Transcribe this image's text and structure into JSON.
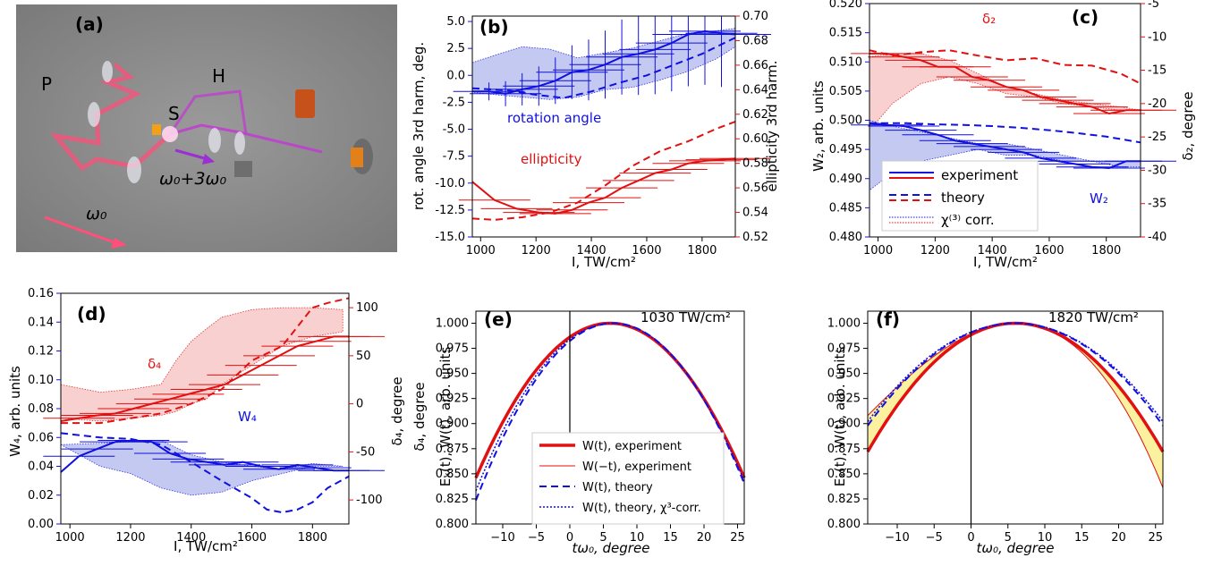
{
  "colors": {
    "blue": "#1010e0",
    "red": "#e21010",
    "blue_fill": "#b9c0ee",
    "red_fill": "#f8c8c8",
    "yellow_fill": "#fbf19e"
  },
  "panel_a": {
    "label": "(a)",
    "labels": {
      "p": "P",
      "h": "H",
      "s": "S",
      "omega0": "ω₀",
      "omega_mix": "ω₀+3ω₀"
    }
  },
  "chart_data": [
    {
      "id": "b",
      "type": "line",
      "panel_label": "(b)",
      "xlabel": "I, TW/cm²",
      "ylabel_left": "rot. angle 3rd harm, deg.",
      "ylabel_right": "ellipticity 3rd harm.",
      "xlim": [
        970,
        1920
      ],
      "ylim_left": [
        -15,
        5.5
      ],
      "ylim_right": [
        0.52,
        0.7
      ],
      "x_ticks": [
        1000,
        1200,
        1400,
        1600,
        1800
      ],
      "y_ticks_left": [
        -15.0,
        -12.5,
        -10.0,
        -7.5,
        -5.0,
        -2.5,
        0.0,
        2.5,
        5.0
      ],
      "y_ticks_right": [
        0.52,
        0.54,
        0.56,
        0.58,
        0.6,
        0.62,
        0.64,
        0.66,
        0.68,
        0.7
      ],
      "annotations": [
        {
          "text": "rotation angle",
          "color": "blue"
        },
        {
          "text": "ellipticity",
          "color": "red"
        }
      ],
      "series": [
        {
          "axis": "right",
          "color": "blue",
          "style": "band",
          "x": [
            970,
            1050,
            1150,
            1250,
            1350,
            1450,
            1550,
            1650,
            1750,
            1850,
            1920
          ],
          "y": [
            0.662,
            0.668,
            0.675,
            0.673,
            0.666,
            0.67,
            0.674,
            0.68,
            0.686,
            0.688,
            0.69
          ],
          "y2": [
            0.638,
            0.636,
            0.634,
            0.632,
            0.634,
            0.64,
            0.642,
            0.648,
            0.655,
            0.665,
            0.675
          ]
        },
        {
          "axis": "left",
          "color": "blue",
          "style": "step",
          "x": [
            970,
            1030,
            1090,
            1150,
            1210,
            1270,
            1330,
            1390,
            1450,
            1510,
            1570,
            1630,
            1690,
            1750,
            1810,
            1870,
            1920
          ],
          "y": [
            -1.5,
            -1.5,
            -1.7,
            -1.3,
            -1.0,
            -0.5,
            0.3,
            0.5,
            1.0,
            1.7,
            2.0,
            2.4,
            3.0,
            3.8,
            4.1,
            3.9,
            3.8
          ]
        },
        {
          "axis": "left",
          "color": "blue",
          "style": "dash",
          "x": [
            970,
            1100,
            1200,
            1300,
            1400,
            1500,
            1600,
            1700,
            1800,
            1920
          ],
          "y": [
            -1.2,
            -1.4,
            -1.8,
            -2.1,
            -1.5,
            -0.7,
            0.0,
            1.0,
            2.0,
            3.5
          ]
        },
        {
          "axis": "right",
          "color": "red",
          "style": "step",
          "x": [
            970,
            1050,
            1130,
            1210,
            1270,
            1330,
            1390,
            1450,
            1510,
            1570,
            1630,
            1690,
            1750,
            1810,
            1870,
            1920
          ],
          "y": [
            0.565,
            0.55,
            0.543,
            0.54,
            0.539,
            0.542,
            0.548,
            0.552,
            0.56,
            0.566,
            0.572,
            0.575,
            0.58,
            0.582,
            0.583,
            0.584
          ]
        },
        {
          "axis": "right",
          "color": "red",
          "style": "dash",
          "x": [
            970,
            1050,
            1150,
            1250,
            1350,
            1450,
            1550,
            1650,
            1750,
            1850,
            1920
          ],
          "y": [
            0.535,
            0.534,
            0.536,
            0.54,
            0.548,
            0.562,
            0.578,
            0.59,
            0.598,
            0.608,
            0.614
          ]
        }
      ]
    },
    {
      "id": "c",
      "type": "line",
      "panel_label": "(c)",
      "xlabel": "I, TW/cm²",
      "ylabel_left": "W₂, arb. units",
      "ylabel_right": "δ₂, degree",
      "xlim": [
        970,
        1920
      ],
      "ylim_left": [
        0.48,
        0.52
      ],
      "ylim_right": [
        -40,
        -5
      ],
      "x_ticks": [
        1000,
        1200,
        1400,
        1600,
        1800
      ],
      "y_ticks_left": [
        0.48,
        0.485,
        0.49,
        0.495,
        0.5,
        0.505,
        0.51,
        0.515,
        0.52
      ],
      "y_ticks_right": [
        -40,
        -35,
        -30,
        -25,
        -20,
        -15,
        -10,
        -5
      ],
      "annotations": [
        {
          "text": "δ₂",
          "color": "red"
        },
        {
          "text": "W₂",
          "color": "blue"
        }
      ],
      "legend": {
        "placement": "lower-left",
        "entries": [
          "experiment",
          "",
          "theory",
          "",
          "χ⁽³⁾ corr.",
          ""
        ]
      },
      "series": [
        {
          "axis": "right",
          "color": "red",
          "style": "band",
          "x": [
            970,
            1050,
            1150,
            1250,
            1350,
            1450,
            1550,
            1650,
            1750,
            1850,
            1920
          ],
          "y": [
            -13.0,
            -12.5,
            -12.5,
            -13.5,
            -15.5,
            -17.5,
            -18.5,
            -19.5,
            -20.0,
            -20.5,
            -21.0
          ],
          "y2": [
            -24.0,
            -20.0,
            -17.0,
            -16.0,
            -17.0,
            -18.5,
            -19.0,
            -20.0,
            -20.5,
            -21.0,
            -21.0
          ]
        },
        {
          "axis": "left",
          "color": "blue",
          "style": "band",
          "x": [
            970,
            1050,
            1150,
            1250,
            1350,
            1450,
            1550,
            1650,
            1750,
            1850,
            1920
          ],
          "y": [
            0.5,
            0.499,
            0.498,
            0.497,
            0.496,
            0.496,
            0.495,
            0.494,
            0.493,
            0.492,
            0.492
          ],
          "y2": [
            0.488,
            0.491,
            0.493,
            0.494,
            0.495,
            0.494,
            0.494,
            0.493,
            0.493,
            0.493,
            0.493
          ]
        },
        {
          "axis": "right",
          "color": "red",
          "style": "step",
          "x": [
            970,
            1030,
            1090,
            1150,
            1210,
            1270,
            1330,
            1390,
            1450,
            1510,
            1570,
            1630,
            1690,
            1750,
            1810,
            1870,
            1920
          ],
          "y": [
            -12.5,
            -12.5,
            -13.0,
            -13.5,
            -14.5,
            -14.5,
            -16.0,
            -16.5,
            -17.5,
            -18.0,
            -19.0,
            -19.5,
            -20.0,
            -20.5,
            -21.5,
            -21.0,
            -21.0
          ]
        },
        {
          "axis": "right",
          "color": "red",
          "style": "dash",
          "x": [
            970,
            1050,
            1150,
            1250,
            1350,
            1450,
            1550,
            1650,
            1750,
            1850,
            1920
          ],
          "y": [
            -12.0,
            -12.8,
            -12.3,
            -12.0,
            -12.8,
            -13.5,
            -13.2,
            -14.2,
            -14.3,
            -15.5,
            -17.0
          ]
        },
        {
          "axis": "left",
          "color": "blue",
          "style": "step",
          "x": [
            970,
            1030,
            1090,
            1150,
            1210,
            1270,
            1330,
            1390,
            1450,
            1510,
            1570,
            1630,
            1690,
            1750,
            1810,
            1870,
            1920
          ],
          "y": [
            0.4995,
            0.4992,
            0.499,
            0.4983,
            0.4975,
            0.4965,
            0.496,
            0.4955,
            0.495,
            0.4945,
            0.4935,
            0.493,
            0.4925,
            0.492,
            0.4918,
            0.493,
            0.493
          ]
        },
        {
          "axis": "left",
          "color": "blue",
          "style": "dash",
          "x": [
            970,
            1100,
            1200,
            1300,
            1400,
            1500,
            1600,
            1700,
            1800,
            1920
          ],
          "y": [
            0.4995,
            0.4995,
            0.4993,
            0.4992,
            0.499,
            0.4987,
            0.4983,
            0.4978,
            0.4972,
            0.4962
          ]
        }
      ]
    },
    {
      "id": "d",
      "type": "line",
      "panel_label": "(d)",
      "xlabel": "I, TW/cm²",
      "ylabel_left": "W₄, arb. units",
      "ylabel_right": "δ₄, degree",
      "xlim": [
        970,
        1920
      ],
      "ylim_left": [
        0.0,
        0.16
      ],
      "ylim_right": [
        -125,
        115
      ],
      "x_ticks": [
        1000,
        1200,
        1400,
        1600,
        1800
      ],
      "y_ticks_left": [
        0.0,
        0.02,
        0.04,
        0.06,
        0.08,
        0.1,
        0.12,
        0.14,
        0.16
      ],
      "y_ticks_right": [
        -100,
        -50,
        0,
        50,
        100
      ],
      "annotations": [
        {
          "text": "δ₄",
          "color": "red"
        },
        {
          "text": "W₄",
          "color": "blue"
        }
      ],
      "series": [
        {
          "axis": "right",
          "color": "red",
          "style": "band",
          "x": [
            970,
            1100,
            1200,
            1300,
            1350,
            1400,
            1450,
            1500,
            1600,
            1700,
            1800,
            1900
          ],
          "y": [
            20,
            12,
            15,
            20,
            45,
            65,
            78,
            90,
            98,
            100,
            100,
            98
          ],
          "y2": [
            -15,
            -18,
            -15,
            -12,
            -8,
            0,
            5,
            20,
            40,
            60,
            70,
            75
          ]
        },
        {
          "axis": "left",
          "color": "blue",
          "style": "band",
          "x": [
            970,
            1100,
            1200,
            1250,
            1300,
            1400,
            1500,
            1600,
            1700,
            1800,
            1900
          ],
          "y": [
            0.055,
            0.056,
            0.057,
            0.058,
            0.058,
            0.048,
            0.043,
            0.04,
            0.038,
            0.042,
            0.04
          ],
          "y2": [
            0.055,
            0.04,
            0.035,
            0.03,
            0.025,
            0.02,
            0.022,
            0.03,
            0.035,
            0.04,
            0.04
          ]
        },
        {
          "axis": "right",
          "color": "red",
          "style": "step",
          "x": [
            970,
            1030,
            1090,
            1150,
            1210,
            1270,
            1330,
            1390,
            1450,
            1510,
            1570,
            1630,
            1690,
            1750,
            1810,
            1870,
            1920
          ],
          "y": [
            -18,
            -15,
            -12,
            -10,
            -5,
            0,
            5,
            10,
            15,
            20,
            30,
            40,
            50,
            60,
            65,
            70,
            70
          ]
        },
        {
          "axis": "right",
          "color": "red",
          "style": "dash",
          "x": [
            970,
            1100,
            1200,
            1300,
            1400,
            1500,
            1550,
            1600,
            1700,
            1750,
            1800,
            1850,
            1920
          ],
          "y": [
            -20,
            -20,
            -15,
            -10,
            0,
            15,
            30,
            45,
            60,
            80,
            100,
            105,
            110
          ]
        },
        {
          "axis": "left",
          "color": "blue",
          "style": "step",
          "x": [
            970,
            1030,
            1090,
            1150,
            1210,
            1270,
            1330,
            1390,
            1450,
            1510,
            1570,
            1630,
            1690,
            1750,
            1810,
            1870,
            1920
          ],
          "y": [
            0.036,
            0.047,
            0.052,
            0.057,
            0.058,
            0.057,
            0.049,
            0.045,
            0.043,
            0.041,
            0.043,
            0.04,
            0.038,
            0.041,
            0.039,
            0.037,
            0.037
          ]
        },
        {
          "axis": "left",
          "color": "blue",
          "style": "dash",
          "x": [
            970,
            1100,
            1200,
            1300,
            1400,
            1500,
            1600,
            1650,
            1700,
            1750,
            1800,
            1850,
            1920
          ],
          "y": [
            0.063,
            0.06,
            0.059,
            0.055,
            0.043,
            0.03,
            0.018,
            0.01,
            0.008,
            0.01,
            0.015,
            0.025,
            0.033
          ]
        }
      ]
    },
    {
      "id": "e",
      "type": "line",
      "panel_label": "(e)",
      "corner_text": "1030 TW/cm²",
      "xlabel": "tω₀, degree",
      "ylabel": "δ₄, degree",
      "ylabel_second": "Eₓ(t), W(t), arb. units",
      "xlim": [
        -14,
        26
      ],
      "ylim": [
        0.8,
        1.012
      ],
      "x_ticks": [
        -10,
        -5,
        0,
        5,
        10,
        15,
        20,
        25
      ],
      "y_ticks": [
        0.8,
        0.825,
        0.85,
        0.875,
        0.9,
        0.925,
        0.95,
        0.975,
        1.0
      ],
      "legend": {
        "placement": "lower-center",
        "entries": [
          "W(t), experiment",
          "W(−t), experiment",
          "W(t), theory",
          "W(t), theory, χ³-corr."
        ]
      },
      "series": [
        {
          "name": "W(t), experiment",
          "style": "thick",
          "peak": 6.0,
          "curv": 0.000385
        },
        {
          "name": "W(−t), experiment",
          "style": "thin",
          "peak": 6.0,
          "curv": 0.000385
        },
        {
          "name": "W(t), theory",
          "style": "dash",
          "peak": 6.5,
          "curv": 0.00042
        },
        {
          "name": "W(t), theory, χ³-corr.",
          "style": "dot",
          "peak": 6.3,
          "curv": 0.000405
        }
      ]
    },
    {
      "id": "f",
      "type": "line",
      "panel_label": "(f)",
      "corner_text": "1820 TW/cm²",
      "xlabel": "tω₀, degree",
      "ylabel": "Eₓ(t), W(t), arb. units",
      "xlim": [
        -14,
        26
      ],
      "ylim": [
        0.8,
        1.012
      ],
      "x_ticks": [
        -10,
        -5,
        0,
        5,
        10,
        15,
        20,
        25
      ],
      "y_ticks": [
        0.8,
        0.825,
        0.85,
        0.875,
        0.9,
        0.925,
        0.95,
        0.975,
        1.0
      ],
      "series": [
        {
          "name": "W(t), experiment",
          "style": "thick",
          "peak": 6.0,
          "curv": 0.00032
        },
        {
          "name": "W(−t), experiment",
          "style": "thin",
          "peak": 6.0,
          "curv": 0.00032,
          "asym": 4.5e-06
        },
        {
          "name": "W(t), theory",
          "style": "dash",
          "peak": 6.0,
          "curv": 0.000255
        },
        {
          "name": "W(t), theory, χ³-corr.",
          "style": "dot",
          "peak": 6.0,
          "curv": 0.000245
        }
      ]
    }
  ]
}
